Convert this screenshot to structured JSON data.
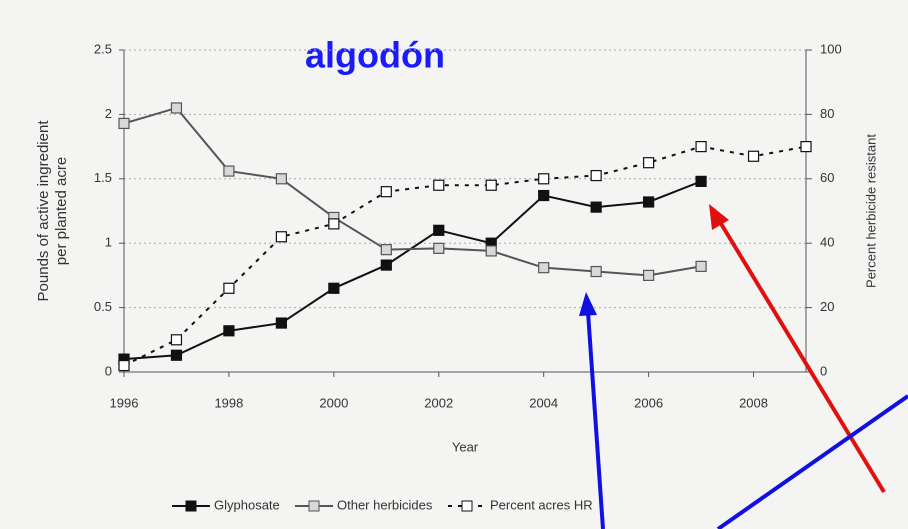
{
  "chart_data": {
    "type": "line",
    "title": "algodón",
    "xlabel": "Year",
    "ylabel": [
      "Pounds of active ingredient",
      "per planted acre"
    ],
    "y2label": "Percent herbicide resistant",
    "xlim": [
      1996,
      2009
    ],
    "xticks": [
      1996,
      1998,
      2000,
      2002,
      2004,
      2006,
      2008
    ],
    "ylim": [
      0,
      2.5
    ],
    "yticks": [
      0,
      0.5,
      1,
      1.5,
      2,
      2.5
    ],
    "y2lim": [
      0,
      100
    ],
    "y2ticks": [
      0,
      20,
      40,
      60,
      80,
      100
    ],
    "grid": true,
    "series": [
      {
        "name": "Glyphosate",
        "color": "#111111",
        "marker_fill": "#111111",
        "dashed": false,
        "x": [
          1996,
          1997,
          1998,
          1999,
          2000,
          2001,
          2002,
          2003,
          2004,
          2005,
          2006,
          2007
        ],
        "values": [
          0.1,
          0.13,
          0.32,
          0.38,
          0.65,
          0.83,
          1.1,
          1.0,
          1.37,
          1.28,
          1.32,
          1.48
        ]
      },
      {
        "name": "Other herbicides",
        "color": "#555555",
        "marker_fill": "#d8d8d8",
        "dashed": false,
        "x": [
          1996,
          1997,
          1998,
          1999,
          2000,
          2001,
          2002,
          2003,
          2004,
          2005,
          2006,
          2007
        ],
        "values": [
          1.93,
          2.05,
          1.56,
          1.5,
          1.2,
          0.95,
          0.96,
          0.94,
          0.81,
          0.78,
          0.75,
          0.82
        ]
      },
      {
        "name": "Percent acres HR",
        "color": "#111111",
        "marker_fill": "#ffffff",
        "dashed": true,
        "axis": "y2",
        "x": [
          1996,
          1997,
          1998,
          1999,
          2000,
          2001,
          2002,
          2003,
          2004,
          2005,
          2006,
          2007,
          2008,
          2009
        ],
        "values": [
          2,
          10,
          26,
          42,
          46,
          56,
          58,
          58,
          60,
          61,
          65,
          70,
          67,
          70
        ]
      }
    ]
  }
}
